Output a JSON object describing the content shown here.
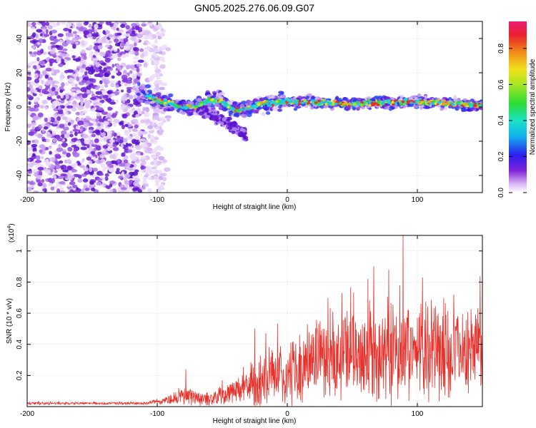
{
  "title": "GN05.2025.276.06.09.G07",
  "chart_data": [
    {
      "type": "heatmap",
      "xlabel": "Height of straight line (km)",
      "ylabel": "Frequency (Hz)",
      "xlim": [
        -200,
        150
      ],
      "ylim": [
        -50,
        50
      ],
      "x_ticks": [
        -200,
        -100,
        0,
        100
      ],
      "y_ticks": [
        -40,
        -20,
        0,
        20,
        40
      ],
      "colorbar": {
        "label": "Normalized spectral amplitude",
        "range": [
          0,
          0.95
        ],
        "ticks": [
          0.0,
          0.2,
          0.4,
          0.6,
          0.8
        ],
        "colormap": "rainbow"
      },
      "features": {
        "noise_region_x": [
          -200,
          -95
        ],
        "signal_band_start_x": -115,
        "signal_centerline": [
          {
            "x": -115,
            "y": 8
          },
          {
            "x": -100,
            "y": 4
          },
          {
            "x": -90,
            "y": 2
          },
          {
            "x": -80,
            "y": 0
          },
          {
            "x": -70,
            "y": 0
          },
          {
            "x": -60,
            "y": 4
          },
          {
            "x": -50,
            "y": 3
          },
          {
            "x": -40,
            "y": -2
          },
          {
            "x": -30,
            "y": -1
          },
          {
            "x": -20,
            "y": 2
          },
          {
            "x": 0,
            "y": 3
          },
          {
            "x": 50,
            "y": 2
          },
          {
            "x": 100,
            "y": 3
          },
          {
            "x": 150,
            "y": 1
          }
        ],
        "low_branch": [
          {
            "x": -70,
            "y": 0
          },
          {
            "x": -55,
            "y": -6
          },
          {
            "x": -40,
            "y": -12
          },
          {
            "x": -32,
            "y": -17
          }
        ]
      }
    },
    {
      "type": "line",
      "xlabel": "Height of straight line (km)",
      "ylabel": "SNR (10 * v/v)",
      "y_scale_label": "(x10",
      "y_scale_exp": "4",
      "y_scale_close": ")",
      "xlim": [
        -200,
        150
      ],
      "ylim": [
        0,
        1.1
      ],
      "x_ticks": [
        -200,
        -100,
        0,
        100
      ],
      "y_ticks": [
        0.2,
        0.4,
        0.6,
        0.8,
        1
      ],
      "color": "#e8312b",
      "envelope": [
        {
          "x": -200,
          "base": 0.02,
          "amp": 0.01
        },
        {
          "x": -110,
          "base": 0.02,
          "amp": 0.01
        },
        {
          "x": -95,
          "base": 0.04,
          "amp": 0.03
        },
        {
          "x": -80,
          "base": 0.07,
          "amp": 0.08
        },
        {
          "x": -60,
          "base": 0.05,
          "amp": 0.05
        },
        {
          "x": -40,
          "base": 0.1,
          "amp": 0.12
        },
        {
          "x": -20,
          "base": 0.16,
          "amp": 0.22
        },
        {
          "x": 0,
          "base": 0.22,
          "amp": 0.26
        },
        {
          "x": 20,
          "base": 0.28,
          "amp": 0.32
        },
        {
          "x": 50,
          "base": 0.34,
          "amp": 0.38
        },
        {
          "x": 80,
          "base": 0.36,
          "amp": 0.42
        },
        {
          "x": 100,
          "base": 0.36,
          "amp": 0.4
        },
        {
          "x": 150,
          "base": 0.36,
          "amp": 0.28
        }
      ],
      "peaks": [
        {
          "x": -78,
          "y": 0.24
        },
        {
          "x": -25,
          "y": 0.5
        },
        {
          "x": 42,
          "y": 0.73
        },
        {
          "x": 62,
          "y": 0.82
        },
        {
          "x": 78,
          "y": 0.88
        },
        {
          "x": 89,
          "y": 1.1
        },
        {
          "x": 104,
          "y": 0.83
        },
        {
          "x": 128,
          "y": 0.72
        }
      ]
    }
  ]
}
